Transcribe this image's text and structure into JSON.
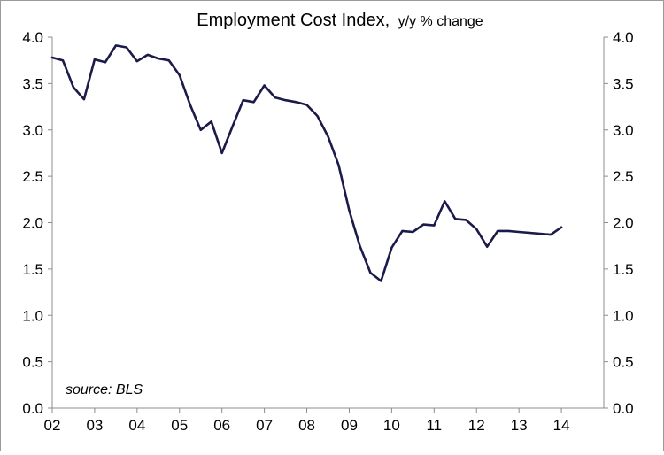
{
  "chart_data": {
    "type": "line",
    "title": "Employment Cost Index,",
    "subtitle": "y/y % change",
    "source_note": "source: BLS",
    "xlabel": "",
    "ylabel": "",
    "xlim": [
      2002.0,
      2015.0
    ],
    "ylim": [
      0,
      4.0
    ],
    "y_ticks": [
      "0.0",
      "0.5",
      "1.0",
      "1.5",
      "2.0",
      "2.5",
      "3.0",
      "3.5",
      "4.0"
    ],
    "x_ticks": [
      "02",
      "03",
      "04",
      "05",
      "06",
      "07",
      "08",
      "09",
      "10",
      "11",
      "12",
      "13",
      "14"
    ],
    "grid": false,
    "legend": "none",
    "line_color": "#1b1a4a",
    "series": [
      {
        "x": [
          2002.0,
          2002.25,
          2002.5,
          2002.75,
          2003.0,
          2003.25,
          2003.5,
          2003.75,
          2004.0,
          2004.25,
          2004.5,
          2004.75,
          2005.0,
          2005.25,
          2005.5,
          2005.75,
          2006.0,
          2006.25,
          2006.5,
          2006.75,
          2007.0,
          2007.25,
          2007.5,
          2007.75,
          2008.0,
          2008.25,
          2008.5,
          2008.75,
          2009.0,
          2009.25,
          2009.5,
          2009.75,
          2010.0,
          2010.25,
          2010.5,
          2010.75,
          2011.0,
          2011.25,
          2011.5,
          2011.75,
          2012.0,
          2012.25,
          2012.5,
          2012.75,
          2013.0,
          2013.75,
          2014.0
        ],
        "values": [
          3.78,
          3.75,
          3.46,
          3.33,
          3.76,
          3.73,
          3.91,
          3.89,
          3.74,
          3.81,
          3.77,
          3.75,
          3.59,
          3.27,
          3.0,
          3.09,
          2.75,
          3.04,
          3.32,
          3.3,
          3.48,
          3.35,
          3.32,
          3.3,
          3.27,
          3.15,
          2.93,
          2.62,
          2.13,
          1.75,
          1.46,
          1.37,
          1.73,
          1.91,
          1.9,
          1.98,
          1.97,
          2.23,
          2.04,
          2.03,
          1.93,
          1.74,
          1.91,
          1.91,
          1.9,
          1.87,
          1.95
        ]
      }
    ]
  }
}
